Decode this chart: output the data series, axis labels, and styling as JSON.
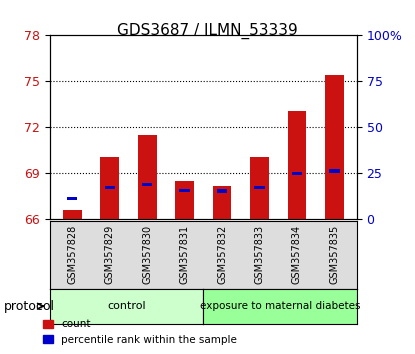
{
  "title": "GDS3687 / ILMN_53339",
  "samples": [
    "GSM357828",
    "GSM357829",
    "GSM357830",
    "GSM357831",
    "GSM357832",
    "GSM357833",
    "GSM357834",
    "GSM357835"
  ],
  "red_values": [
    66.6,
    70.1,
    71.5,
    68.5,
    68.2,
    70.1,
    73.1,
    75.4
  ],
  "blue_values": [
    67.35,
    68.1,
    68.3,
    67.9,
    67.85,
    68.1,
    69.0,
    69.15
  ],
  "ymin": 66,
  "ymax": 78,
  "yticks": [
    66,
    69,
    72,
    75,
    78
  ],
  "right_yticks_vals": [
    66,
    69,
    72,
    75,
    78
  ],
  "right_ytick_labels": [
    "0",
    "25",
    "50",
    "75",
    "100%"
  ],
  "control_samples": [
    "GSM357828",
    "GSM357829",
    "GSM357830",
    "GSM357831"
  ],
  "diabetes_samples": [
    "GSM357832",
    "GSM357833",
    "GSM357834",
    "GSM357835"
  ],
  "control_color": "#ccffcc",
  "diabetes_color": "#99ff99",
  "bar_color": "#cc1111",
  "blue_color": "#0000cc",
  "bar_width": 0.5,
  "xlabel_color": "#cc1111",
  "right_label_color": "#0000cc",
  "protocol_label": "protocol",
  "control_label": "control",
  "diabetes_label": "exposure to maternal diabetes",
  "legend_count": "count",
  "legend_percentile": "percentile rank within the sample"
}
